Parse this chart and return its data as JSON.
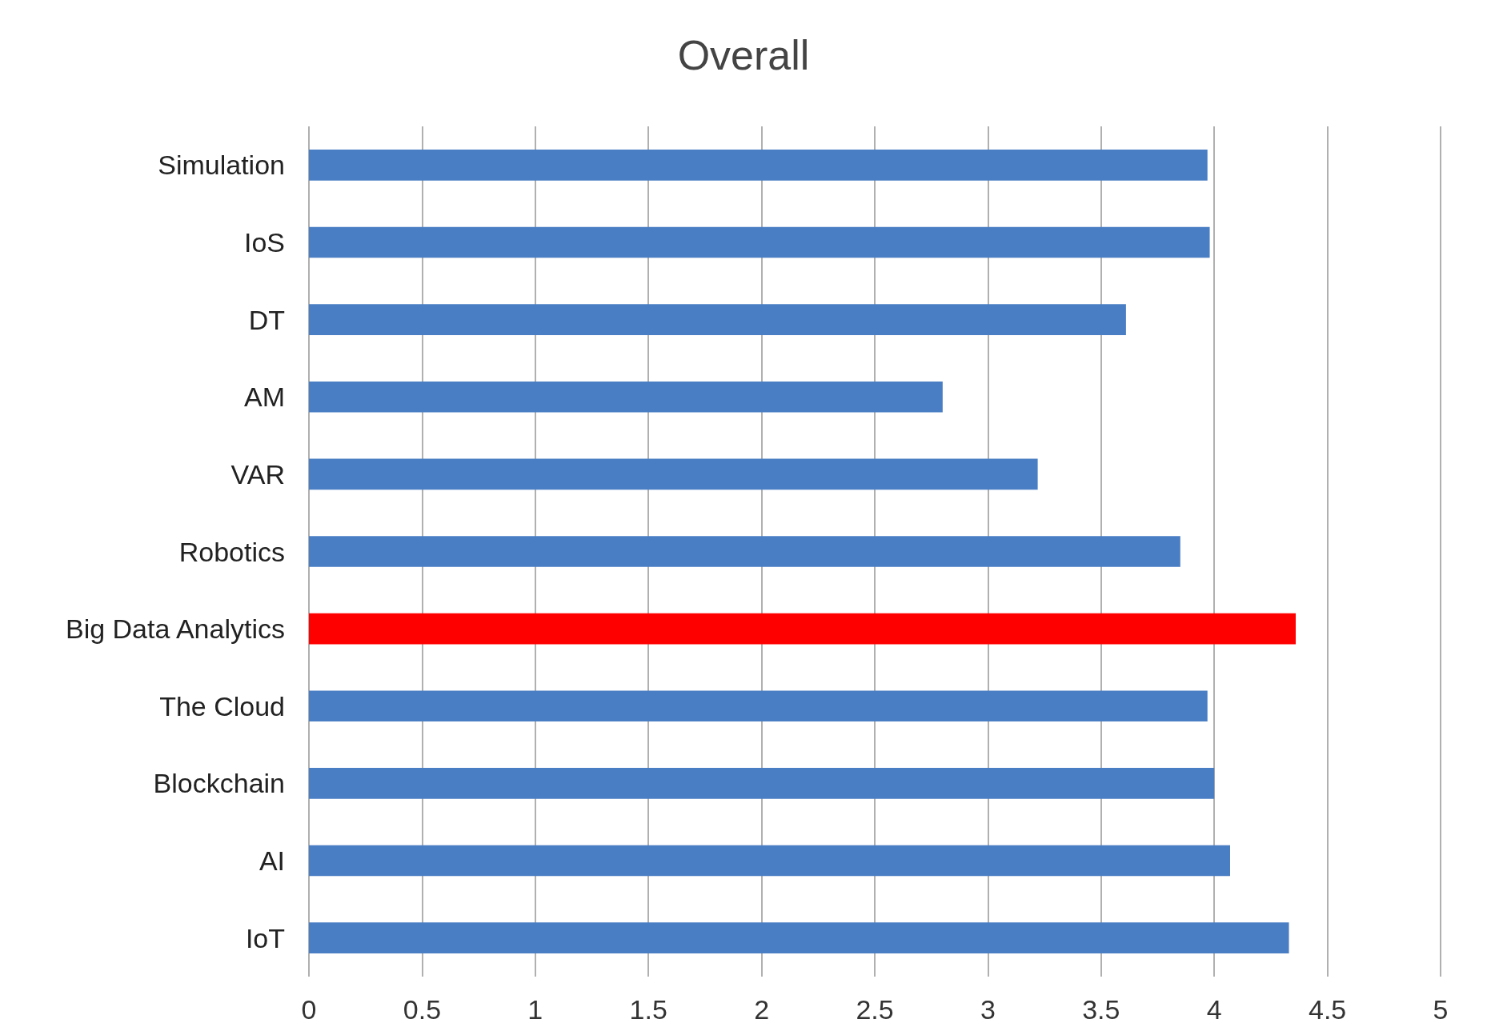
{
  "chart_data": {
    "type": "bar",
    "orientation": "horizontal",
    "title": "Overall",
    "categories": [
      "Simulation",
      "IoS",
      "DT",
      "AM",
      "VAR",
      "Robotics",
      "Big Data Analytics",
      "The Cloud",
      "Blockchain",
      "AI",
      "IoT"
    ],
    "values": [
      3.97,
      3.98,
      3.61,
      2.8,
      3.22,
      3.85,
      4.36,
      3.97,
      4.0,
      4.07,
      4.33
    ],
    "colors": [
      "#4a7ec4",
      "#4a7ec4",
      "#4a7ec4",
      "#4a7ec4",
      "#4a7ec4",
      "#4a7ec4",
      "#ff0000",
      "#4a7ec4",
      "#4a7ec4",
      "#4a7ec4",
      "#4a7ec4"
    ],
    "xlim": [
      0,
      5
    ],
    "xticks": [
      0,
      0.5,
      1,
      1.5,
      2,
      2.5,
      3,
      3.5,
      4,
      4.5,
      5
    ],
    "grid": "x"
  }
}
